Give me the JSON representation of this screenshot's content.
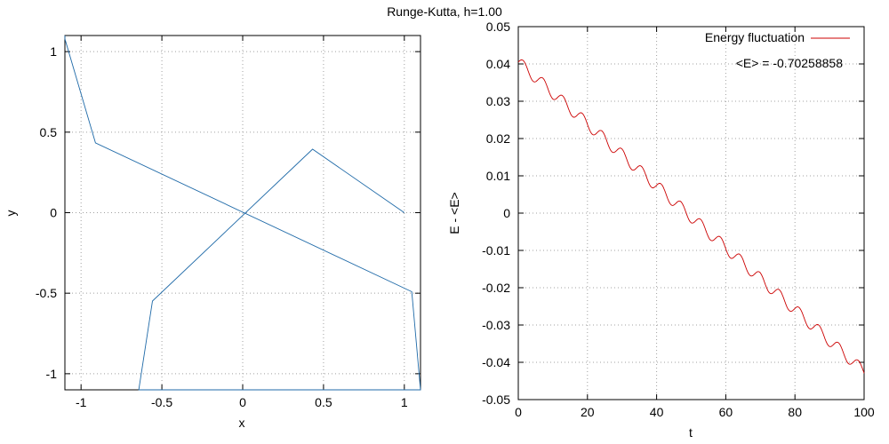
{
  "figure": {
    "title": "Runge-Kutta, h=1.00"
  },
  "chart_data": [
    {
      "type": "line",
      "xlabel": "x",
      "ylabel": "y",
      "xlim": [
        -1.1,
        1.1
      ],
      "ylim": [
        -1.1,
        1.1
      ],
      "xticks": [
        -1,
        -0.5,
        0,
        0.5,
        1
      ],
      "yticks": [
        -1,
        -0.5,
        0,
        0.5,
        1
      ],
      "xtick_labels": [
        "-1",
        "-0.5",
        "0",
        "0.5",
        "1"
      ],
      "ytick_labels": [
        "-1",
        "-0.5",
        "0",
        "0.5",
        "1"
      ],
      "grid": true,
      "series": [
        {
          "color": "#1f6aa8",
          "generator": {
            "kind": "rk4_kepler_orbit",
            "step": 1.0,
            "steps": 100,
            "initial_position": [
              1.0,
              0.0
            ],
            "initial_velocity": [
              0.0,
              0.52
            ]
          }
        }
      ]
    },
    {
      "type": "line",
      "xlabel": "t",
      "ylabel": "E - <E>",
      "xlim": [
        0,
        100
      ],
      "ylim": [
        -0.05,
        0.05
      ],
      "xticks": [
        0,
        20,
        40,
        60,
        80,
        100
      ],
      "yticks": [
        -0.05,
        -0.04,
        -0.03,
        -0.02,
        -0.01,
        0,
        0.01,
        0.02,
        0.03,
        0.04,
        0.05
      ],
      "xtick_labels": [
        "0",
        "20",
        "40",
        "60",
        "80",
        "100"
      ],
      "ytick_labels": [
        "-0.05",
        "-0.04",
        "-0.03",
        "-0.02",
        "-0.01",
        "0",
        "0.01",
        "0.02",
        "0.03",
        "0.04",
        "0.05"
      ],
      "grid": true,
      "legend": {
        "position": "top-right",
        "label": "Energy fluctuation"
      },
      "annotation": "<E> = -0.70258858",
      "series": [
        {
          "name": "Energy fluctuation",
          "color": "#cc0000",
          "x_start": 0,
          "x_end": 100,
          "y_start": 0.0405,
          "y_end": -0.0425,
          "step_period": 5.7,
          "step_amplitude": 0.0016
        }
      ]
    }
  ]
}
